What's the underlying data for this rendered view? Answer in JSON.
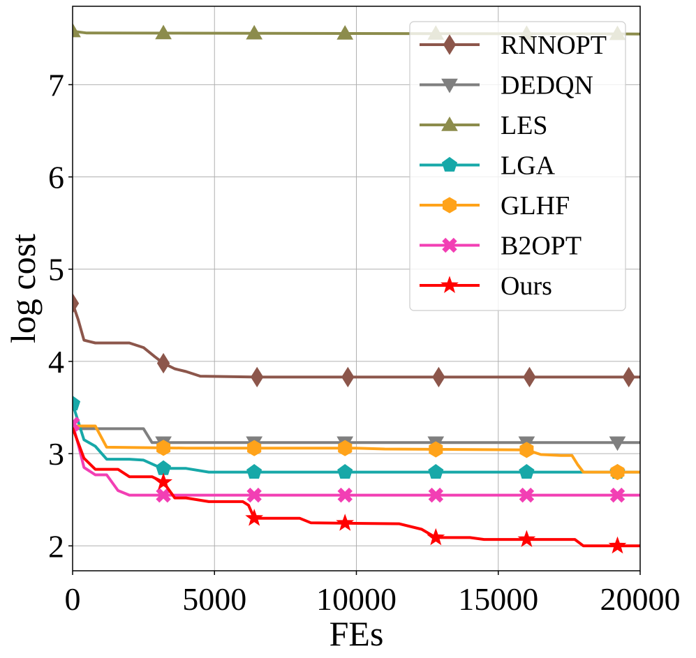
{
  "chart_data": {
    "type": "line",
    "title": "",
    "xlabel": "FEs",
    "ylabel": "log cost",
    "xlim": [
      0,
      20000
    ],
    "ylim": [
      1.73,
      7.85
    ],
    "xticks": [
      0,
      5000,
      10000,
      15000,
      20000
    ],
    "yticks": [
      2,
      3,
      4,
      5,
      6,
      7
    ],
    "grid": true,
    "legend_position": "top-right",
    "series": [
      {
        "name": "RNNOPT",
        "color": "#8c564b",
        "marker": "diamond",
        "points": [
          [
            0,
            4.63
          ],
          [
            200,
            4.45
          ],
          [
            400,
            4.23
          ],
          [
            800,
            4.2
          ],
          [
            2000,
            4.2
          ],
          [
            2500,
            4.15
          ],
          [
            2900,
            4.05
          ],
          [
            3200,
            3.98
          ],
          [
            3600,
            3.92
          ],
          [
            4000,
            3.89
          ],
          [
            4500,
            3.84
          ],
          [
            6500,
            3.83
          ],
          [
            20000,
            3.83
          ]
        ],
        "marker_x": [
          0,
          3200,
          6500,
          9700,
          12900,
          16100,
          19600
        ]
      },
      {
        "name": "DEDQN",
        "color": "#7f7f7f",
        "marker": "triangle-down",
        "points": [
          [
            0,
            3.27
          ],
          [
            400,
            3.27
          ],
          [
            2500,
            3.27
          ],
          [
            2800,
            3.12
          ],
          [
            20000,
            3.12
          ]
        ],
        "marker_x": [
          3200,
          6400,
          9600,
          12800,
          16000,
          19200
        ]
      },
      {
        "name": "LES",
        "color": "#8c8c4c",
        "marker": "triangle-up",
        "points": [
          [
            0,
            7.58
          ],
          [
            500,
            7.56
          ],
          [
            20000,
            7.55
          ]
        ],
        "marker_x": [
          0,
          3200,
          6400,
          9600,
          12800,
          16000,
          19200
        ]
      },
      {
        "name": "LGA",
        "color": "#17a8a8",
        "marker": "pentagon",
        "points": [
          [
            0,
            3.54
          ],
          [
            400,
            3.15
          ],
          [
            800,
            3.08
          ],
          [
            1200,
            2.94
          ],
          [
            2000,
            2.94
          ],
          [
            2500,
            2.93
          ],
          [
            3000,
            2.86
          ],
          [
            3200,
            2.84
          ],
          [
            4000,
            2.84
          ],
          [
            4800,
            2.8
          ],
          [
            20000,
            2.8
          ]
        ],
        "marker_x": [
          0,
          3200,
          6400,
          9600,
          12800,
          16000,
          19200
        ]
      },
      {
        "name": "GLHF",
        "color": "#ffa31a",
        "marker": "hexagon",
        "points": [
          [
            0,
            3.3
          ],
          [
            800,
            3.3
          ],
          [
            1200,
            3.07
          ],
          [
            4000,
            3.06
          ],
          [
            10000,
            3.06
          ],
          [
            11000,
            3.05
          ],
          [
            16000,
            3.04
          ],
          [
            16500,
            2.99
          ],
          [
            17200,
            2.98
          ],
          [
            17600,
            2.98
          ],
          [
            17800,
            2.88
          ],
          [
            18000,
            2.8
          ],
          [
            20000,
            2.8
          ]
        ],
        "marker_x": [
          3200,
          6400,
          9600,
          12800,
          16000,
          19200
        ]
      },
      {
        "name": "B2OPT",
        "color": "#f23fb4",
        "marker": "x",
        "points": [
          [
            0,
            3.32
          ],
          [
            200,
            3.1
          ],
          [
            400,
            2.85
          ],
          [
            800,
            2.77
          ],
          [
            1200,
            2.77
          ],
          [
            1600,
            2.6
          ],
          [
            2000,
            2.55
          ],
          [
            20000,
            2.55
          ]
        ],
        "marker_x": [
          0,
          3200,
          6400,
          9600,
          12800,
          16000,
          19200
        ]
      },
      {
        "name": "Ours",
        "color": "#ff0000",
        "marker": "star",
        "points": [
          [
            0,
            3.28
          ],
          [
            400,
            2.95
          ],
          [
            800,
            2.83
          ],
          [
            1600,
            2.83
          ],
          [
            2000,
            2.75
          ],
          [
            2800,
            2.75
          ],
          [
            3200,
            2.69
          ],
          [
            3600,
            2.52
          ],
          [
            4000,
            2.52
          ],
          [
            4800,
            2.48
          ],
          [
            6000,
            2.48
          ],
          [
            6200,
            2.44
          ],
          [
            6400,
            2.3
          ],
          [
            8000,
            2.3
          ],
          [
            8400,
            2.25
          ],
          [
            11500,
            2.24
          ],
          [
            12300,
            2.18
          ],
          [
            12800,
            2.09
          ],
          [
            14000,
            2.09
          ],
          [
            14500,
            2.07
          ],
          [
            17700,
            2.07
          ],
          [
            18000,
            2.0
          ],
          [
            20000,
            2.0
          ]
        ],
        "marker_x": [
          3200,
          6400,
          9600,
          12800,
          16000,
          19200
        ]
      }
    ]
  }
}
